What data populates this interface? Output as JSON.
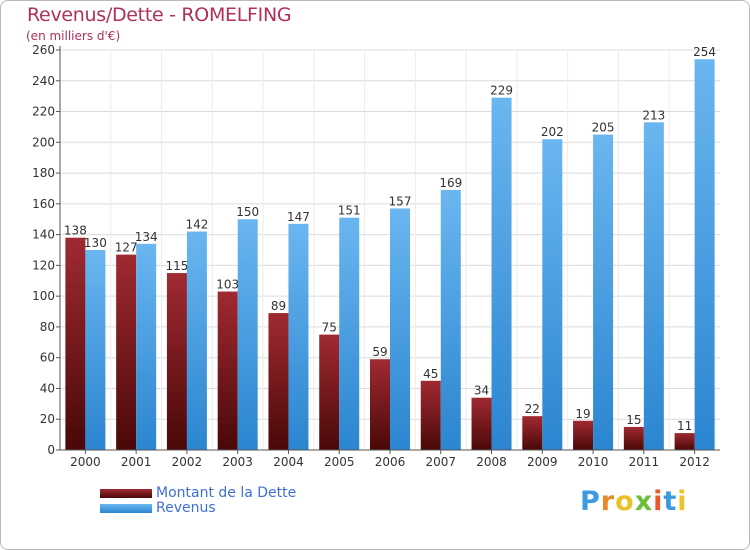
{
  "chart_data": {
    "type": "bar",
    "title": "Revenus/Dette - ROMELFING",
    "subtitle": "(en milliers d'€)",
    "categories": [
      "2000",
      "2001",
      "2002",
      "2003",
      "2004",
      "2005",
      "2006",
      "2007",
      "2008",
      "2009",
      "2010",
      "2011",
      "2012"
    ],
    "series": [
      {
        "name": "Montant de la Dette",
        "values": [
          138,
          127,
          115,
          103,
          89,
          75,
          59,
          45,
          34,
          22,
          19,
          15,
          11
        ]
      },
      {
        "name": "Revenus",
        "values": [
          130,
          134,
          142,
          150,
          147,
          151,
          157,
          169,
          229,
          202,
          205,
          213,
          254
        ]
      }
    ],
    "ylim": [
      0,
      260
    ],
    "yticks": [
      0,
      20,
      40,
      60,
      80,
      100,
      120,
      140,
      160,
      180,
      200,
      220,
      240,
      260
    ],
    "grid": true,
    "legend": "bottom-left",
    "colors": {
      "debt_top": "#a02a32",
      "debt_bottom": "#4a0808",
      "revenue_top": "#6ab6f0",
      "revenue_bottom": "#2b85d0",
      "title": "#b0305a",
      "legend_text": "#3f6fd6"
    }
  },
  "legend": {
    "debt_label": "Montant de la Dette",
    "revenue_label": "Revenus"
  },
  "logo": {
    "text": "Proxiti",
    "letter_colors": [
      "#3b9be0",
      "#e98a2a",
      "#e9c22a",
      "#6cbf3a",
      "#e95a2a",
      "#3b9be0",
      "#e9c22a"
    ]
  }
}
